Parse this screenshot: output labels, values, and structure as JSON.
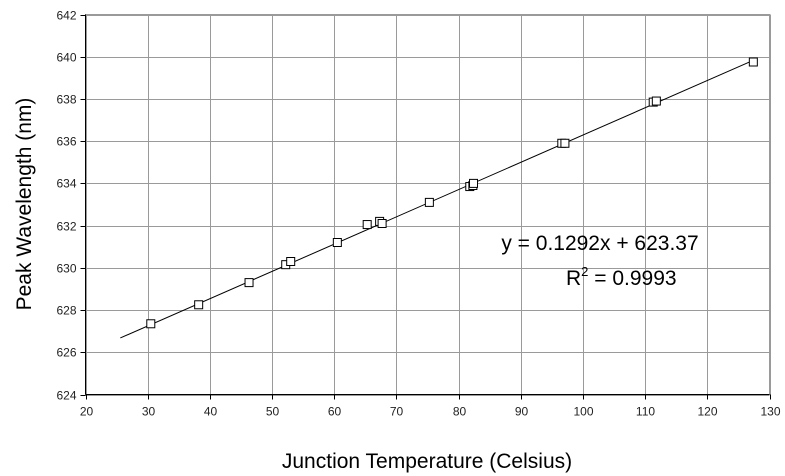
{
  "chart_data": {
    "type": "scatter",
    "xlabel": "Junction Temperature (Celsius)",
    "ylabel": "Peak Wavelength (nm)",
    "xlim": [
      20,
      130
    ],
    "ylim": [
      624,
      642
    ],
    "xticks": [
      20,
      30,
      40,
      50,
      60,
      70,
      80,
      90,
      100,
      110,
      120,
      130
    ],
    "yticks": [
      624,
      626,
      628,
      630,
      632,
      634,
      636,
      638,
      640,
      642
    ],
    "grid": true,
    "series": [
      {
        "marker": "square",
        "x": [
          30.5,
          38.2,
          46.3,
          52.2,
          53.0,
          60.5,
          65.3,
          67.3,
          67.7,
          75.3,
          81.8,
          82.3,
          82.4,
          96.6,
          97.1,
          111.3,
          111.8,
          127.4
        ],
        "y": [
          627.35,
          628.25,
          629.3,
          630.15,
          630.3,
          631.2,
          632.05,
          632.2,
          632.1,
          633.1,
          633.85,
          633.9,
          634.0,
          635.9,
          635.9,
          637.85,
          637.9,
          639.75
        ]
      }
    ],
    "trendline": {
      "slope": 0.1292,
      "intercept": 623.37,
      "x_range": [
        25.6,
        127.4
      ],
      "equation_text": "y = 0.1292x + 623.37",
      "r2_prefix": "R",
      "r2_sup": "2",
      "r2_suffix": " = 0.9993"
    }
  }
}
